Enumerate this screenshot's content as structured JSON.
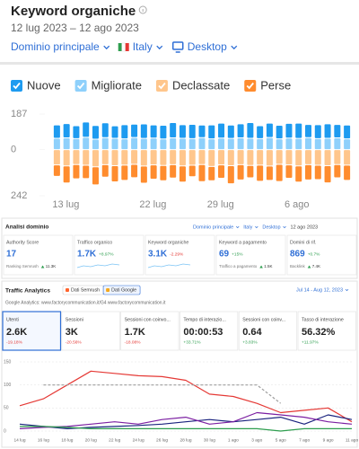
{
  "header": {
    "title": "Keyword organiche",
    "date_range": "12 lug 2023 – 12 ago 2023",
    "filters": [
      "Dominio principale",
      "Italy",
      "Desktop"
    ]
  },
  "chart_data": [
    {
      "type": "bar",
      "stacked": true,
      "categories": [
        "13 lug",
        null,
        null,
        null,
        null,
        null,
        null,
        null,
        null,
        "22 lug",
        null,
        null,
        null,
        null,
        null,
        null,
        "29 lug",
        null,
        null,
        null,
        null,
        null,
        null,
        null,
        "6 ago",
        null,
        null,
        null,
        null,
        null,
        null
      ],
      "series": [
        {
          "name": "Nuove",
          "color": "#1e9bf0",
          "values": [
            70,
            75,
            68,
            80,
            72,
            78,
            65,
            74,
            70,
            76,
            69,
            72,
            80,
            71,
            75,
            66,
            73,
            78,
            70,
            74,
            82,
            68,
            75,
            71,
            77,
            80,
            69,
            73,
            76,
            70,
            72
          ]
        },
        {
          "name": "Migliorate",
          "color": "#8ed0fb",
          "values": [
            60,
            62,
            58,
            65,
            55,
            63,
            60,
            57,
            64,
            59,
            61,
            56,
            62,
            60,
            58,
            63,
            57,
            61,
            59,
            62,
            60,
            58,
            64,
            57,
            61,
            59,
            63,
            58,
            60,
            62,
            57
          ]
        },
        {
          "name": "Declassate",
          "color": "#ffc68c",
          "values": [
            -80,
            -85,
            -78,
            -82,
            -90,
            -79,
            -84,
            -81,
            -77,
            -86,
            -80,
            -83,
            -79,
            -85,
            -82,
            -78,
            -88,
            -80,
            -84,
            -79,
            -83,
            -81,
            -86,
            -77,
            -80,
            -85,
            -79,
            -82,
            -84,
            -78,
            -81
          ]
        },
        {
          "name": "Perse",
          "color": "#ff8c2e",
          "values": [
            -60,
            -90,
            -75,
            -70,
            -95,
            -65,
            -85,
            -80,
            -70,
            -90,
            -75,
            -80,
            -70,
            -85,
            -60,
            -90,
            -75,
            -70,
            -95,
            -80,
            -65,
            -85,
            -75,
            -90,
            -70,
            -85,
            -80,
            -75,
            -90,
            -70,
            -80
          ]
        }
      ],
      "ylim": [
        -242,
        187
      ],
      "yticks": [
        {
          "value": -242,
          "label": "242"
        },
        0,
        187
      ]
    },
    {
      "type": "line",
      "categories": [
        "14 lug",
        "16 lug",
        "18 lug",
        "20 lug",
        "22 lug",
        "24 lug",
        "26 lug",
        "28 lug",
        "30 lug",
        "1 ago",
        "3 ago",
        "5 ago",
        "7 ago",
        "9 ago",
        "11 ago"
      ],
      "series": [
        {
          "color": "#e53935",
          "values": [
            55,
            70,
            100,
            130,
            125,
            120,
            118,
            110,
            80,
            75,
            60,
            40,
            45,
            50,
            20
          ]
        },
        {
          "color": "#9e9e9e",
          "dashed": true,
          "values": [
            null,
            100,
            100,
            100,
            100,
            100,
            100,
            100,
            100,
            100,
            100,
            60,
            null,
            null,
            null
          ]
        },
        {
          "color": "#1a237e",
          "values": [
            15,
            10,
            5,
            8,
            10,
            12,
            15,
            20,
            25,
            20,
            25,
            30,
            15,
            35,
            25
          ]
        },
        {
          "color": "#7b1fa2",
          "values": [
            5,
            8,
            10,
            15,
            20,
            15,
            25,
            30,
            15,
            20,
            40,
            35,
            30,
            20,
            15
          ]
        },
        {
          "color": "#2e9e4f",
          "values": [
            10,
            10,
            8,
            5,
            5,
            5,
            5,
            5,
            5,
            5,
            5,
            0,
            5,
            5,
            5
          ]
        }
      ],
      "ylim": [
        0,
        150
      ],
      "yticks": [
        0,
        50,
        100,
        150
      ],
      "grid": true
    }
  ],
  "domain_analysis": {
    "title": "Analisi dominio",
    "filters": [
      "Dominio principale",
      "Italy",
      "Desktop",
      "12 ago 2023"
    ],
    "cards": [
      {
        "label": "Authority Score",
        "value": "17",
        "sub_label": "Ranking Semrush",
        "sub_value": "11.3K"
      },
      {
        "label": "Traffico organico",
        "value": "1.7K",
        "change": "+8.97%"
      },
      {
        "label": "Keyword organiche",
        "value": "3.1K",
        "change": "-2.29%"
      },
      {
        "label": "Keyword a pagamento",
        "value": "69",
        "change": "+15%",
        "sub_label": "Traffico a pagamento",
        "sub_value": "1.5K"
      },
      {
        "label": "Domini di rif.",
        "value": "869",
        "change": "+0.7%",
        "sub_label": "Backlink",
        "sub_value": "7.4K"
      }
    ]
  },
  "traffic_analytics": {
    "title": "Traffic Analytics",
    "tabs": [
      "Dati Semrush",
      "Dati Google"
    ],
    "date_range": "Jul 14 - Aug 12, 2023",
    "source": "Google Analytics: www.factorycommunication.it/G4 www.factorycommunication.it",
    "metrics": [
      {
        "label": "Utenti",
        "value": "2.6K",
        "change": "-19.18%"
      },
      {
        "label": "Sessioni",
        "value": "3K",
        "change": "-20.56%"
      },
      {
        "label": "Sessioni con coinvo...",
        "value": "1.7K",
        "change": "-18.08%"
      },
      {
        "label": "Tempo di interazio...",
        "value": "00:00:53",
        "change": "+33.71%"
      },
      {
        "label": "Sessioni con coinv...",
        "value": "0.64",
        "change": "+3.83%"
      },
      {
        "label": "Tasso di interazione",
        "value": "56.32%",
        "change": "+11.97%"
      }
    ]
  }
}
